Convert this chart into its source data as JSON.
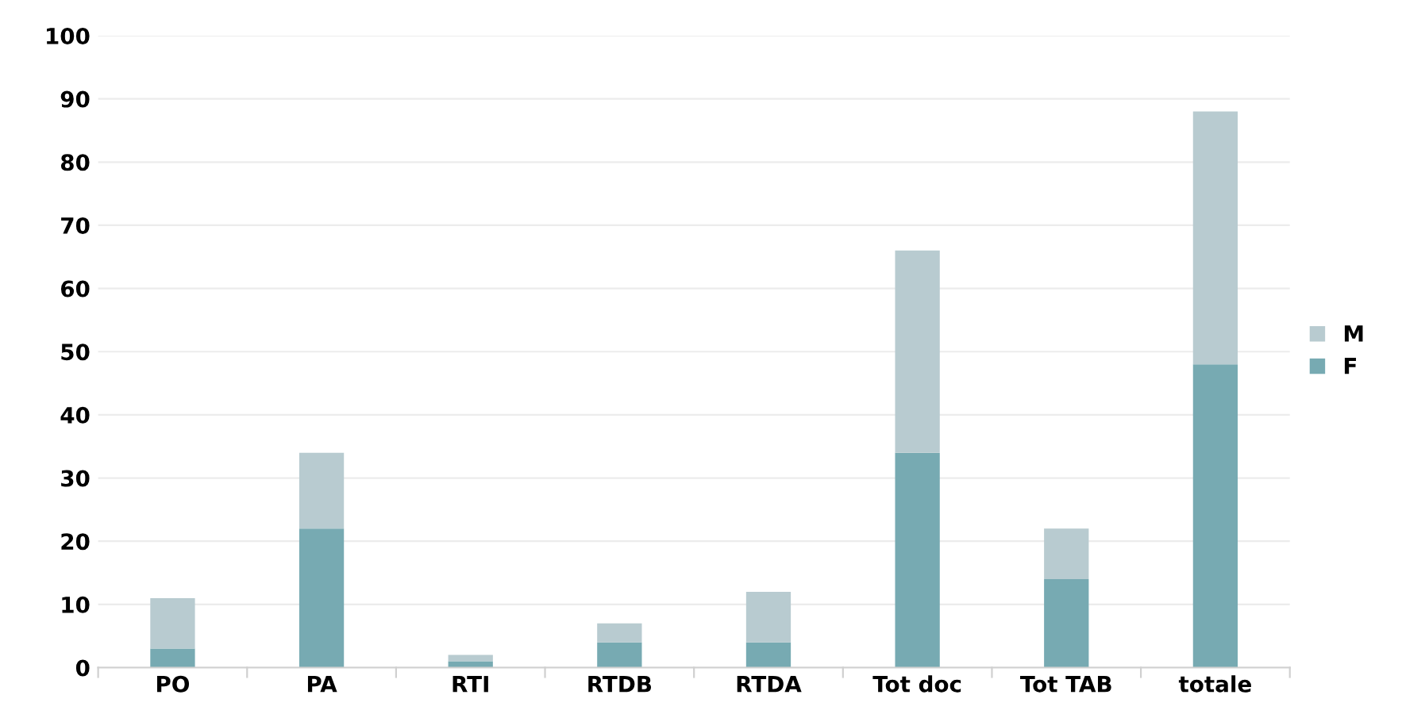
{
  "chart_data": {
    "type": "bar",
    "stacked": true,
    "categories": [
      "PO",
      "PA",
      "RTI",
      "RTDB",
      "RTDA",
      "Tot doc",
      "Tot TAB",
      "totale"
    ],
    "series": [
      {
        "name": "F",
        "color": "#77aab2",
        "values": [
          3,
          22,
          1,
          4,
          4,
          34,
          14,
          48
        ]
      },
      {
        "name": "M",
        "color": "#b8cbd0",
        "values": [
          8,
          12,
          1,
          3,
          8,
          32,
          8,
          40
        ]
      }
    ],
    "ylim": [
      0,
      100
    ],
    "yticks": [
      0,
      10,
      20,
      30,
      40,
      50,
      60,
      70,
      80,
      90,
      100
    ],
    "grid": "y",
    "legend": "right"
  }
}
